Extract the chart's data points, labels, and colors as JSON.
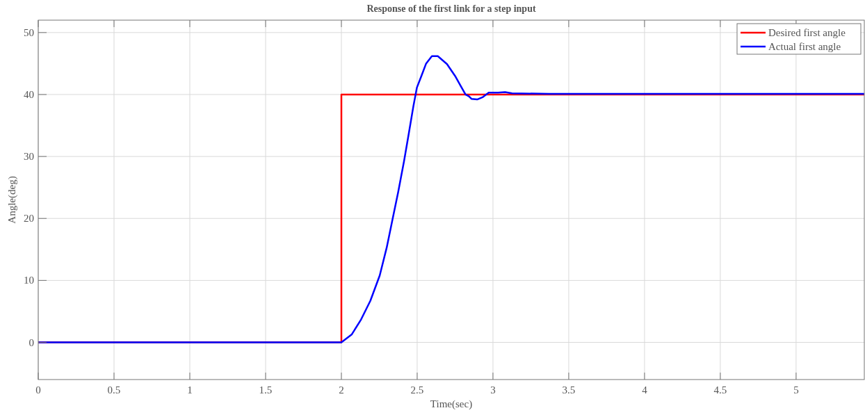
{
  "chart_data": {
    "type": "line",
    "title": "Response of the first link for a step input",
    "xlabel": "Time(sec)",
    "ylabel": "Angle(deg)",
    "xlim": [
      0,
      5.45
    ],
    "ylim": [
      -6,
      52
    ],
    "xticks": [
      0,
      0.5,
      1,
      1.5,
      2,
      2.5,
      3,
      3.5,
      4,
      4.5,
      5
    ],
    "yticks": [
      0,
      10,
      20,
      30,
      40,
      50
    ],
    "grid": true,
    "legend": "top right",
    "line_style": "solid",
    "marker": "none",
    "series": [
      {
        "name": "Desired first angle",
        "color": "#ff0000",
        "x": [
          0,
          2,
          2,
          5.45
        ],
        "values": [
          0,
          0,
          40,
          40
        ]
      },
      {
        "name": "Actual first angle",
        "color": "#0000ff",
        "x": [
          0,
          2.0,
          2.069,
          2.13,
          2.191,
          2.253,
          2.299,
          2.337,
          2.375,
          2.413,
          2.444,
          2.475,
          2.498,
          2.528,
          2.559,
          2.597,
          2.636,
          2.697,
          2.75,
          2.789,
          2.819,
          2.842,
          2.858,
          2.896,
          2.934,
          2.972,
          3.034,
          3.08,
          3.126,
          3.37,
          5.45
        ],
        "values": [
          0,
          0,
          1.3,
          3.7,
          6.7,
          10.8,
          15.3,
          19.8,
          24.3,
          29.2,
          33.6,
          38.1,
          41.1,
          43.0,
          45.0,
          46.2,
          46.2,
          44.9,
          43.0,
          41.3,
          40.0,
          39.7,
          39.3,
          39.2,
          39.6,
          40.3,
          40.3,
          40.4,
          40.2,
          40.1,
          40.1
        ]
      }
    ]
  }
}
